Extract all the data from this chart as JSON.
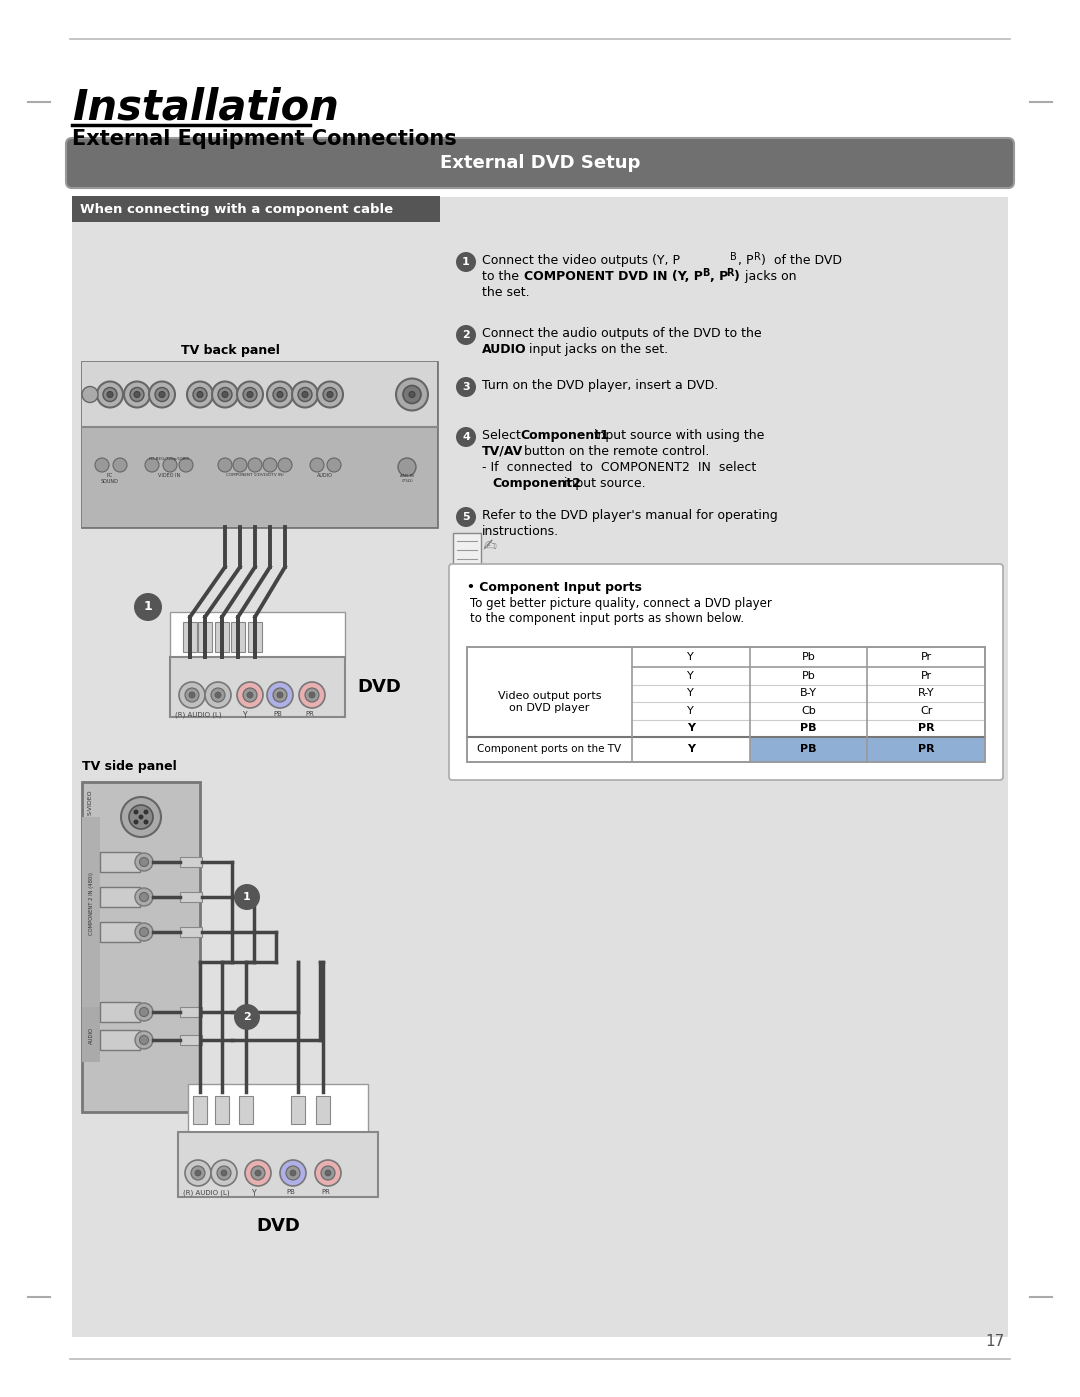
{
  "title_main": "Installation",
  "title_sub": "External Equipment Connections",
  "section_header": "External DVD Setup",
  "subsection_header": "When connecting with a component cable",
  "tv_back_panel_label": "TV back panel",
  "tv_side_panel_label": "TV side panel",
  "dvd_label": "DVD",
  "note_title": "Component Input ports",
  "note_text": "To get better picture quality, connect a DVD player\nto the component input ports as shown below.",
  "table_rows": [
    [
      "Y",
      "Pb",
      "Pr"
    ],
    [
      "Y",
      "B-Y",
      "R-Y"
    ],
    [
      "Y",
      "Cb",
      "Cr"
    ],
    [
      "Y",
      "PB",
      "PR"
    ]
  ],
  "table_tv_label": "Component ports on the TV",
  "table_tv_row": [
    "Y",
    "PB",
    "PR"
  ],
  "bg_color": "#e0e0e0",
  "header_bg": "#707070",
  "header_text_color": "#ffffff",
  "subsection_bg": "#555555",
  "subsection_text_color": "#ffffff",
  "page_bg": "#ffffff",
  "page_number": "17",
  "margin_line_color": "#bbbbbb",
  "margin_dash_color": "#aaaaaa"
}
